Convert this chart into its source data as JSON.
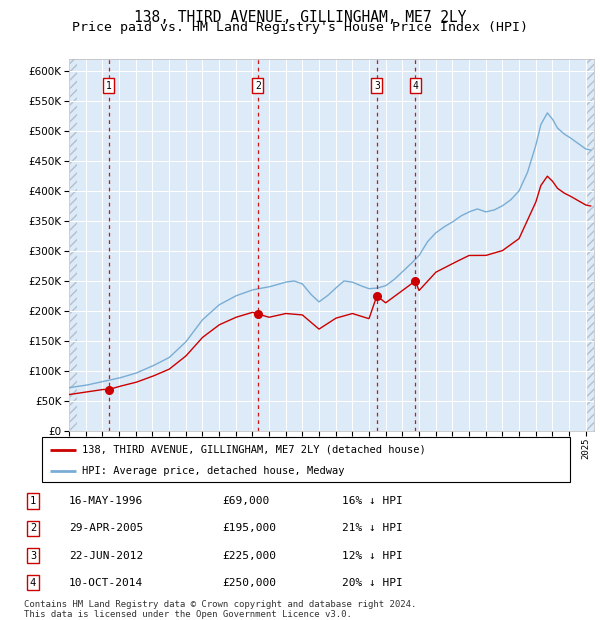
{
  "title": "138, THIRD AVENUE, GILLINGHAM, ME7 2LY",
  "subtitle": "Price paid vs. HM Land Registry's House Price Index (HPI)",
  "ylim": [
    0,
    620000
  ],
  "yticks": [
    0,
    50000,
    100000,
    150000,
    200000,
    250000,
    300000,
    350000,
    400000,
    450000,
    500000,
    550000,
    600000
  ],
  "xlim_start": 1994.0,
  "xlim_end": 2025.5,
  "sale_dates": [
    1996.37,
    2005.33,
    2012.47,
    2014.78
  ],
  "sale_prices": [
    69000,
    195000,
    225000,
    250000
  ],
  "sale_labels": [
    "1",
    "2",
    "3",
    "4"
  ],
  "hpi_color": "#7aadd4",
  "sale_color": "#cc0000",
  "dashed_color": "#cc0000",
  "background_plot": "#ddeaf7",
  "grid_color": "#ffffff",
  "hatch_color": "#b0c0d0",
  "legend_entries": [
    "138, THIRD AVENUE, GILLINGHAM, ME7 2LY (detached house)",
    "HPI: Average price, detached house, Medway"
  ],
  "table_rows": [
    [
      "1",
      "16-MAY-1996",
      "£69,000",
      "16% ↓ HPI"
    ],
    [
      "2",
      "29-APR-2005",
      "£195,000",
      "21% ↓ HPI"
    ],
    [
      "3",
      "22-JUN-2012",
      "£225,000",
      "12% ↓ HPI"
    ],
    [
      "4",
      "10-OCT-2014",
      "£250,000",
      "20% ↓ HPI"
    ]
  ],
  "footer": "Contains HM Land Registry data © Crown copyright and database right 2024.\nThis data is licensed under the Open Government Licence v3.0.",
  "title_fontsize": 10.5,
  "subtitle_fontsize": 9.5,
  "tick_fontsize": 7,
  "legend_fontsize": 7.5,
  "table_fontsize": 8,
  "footer_fontsize": 6.5
}
